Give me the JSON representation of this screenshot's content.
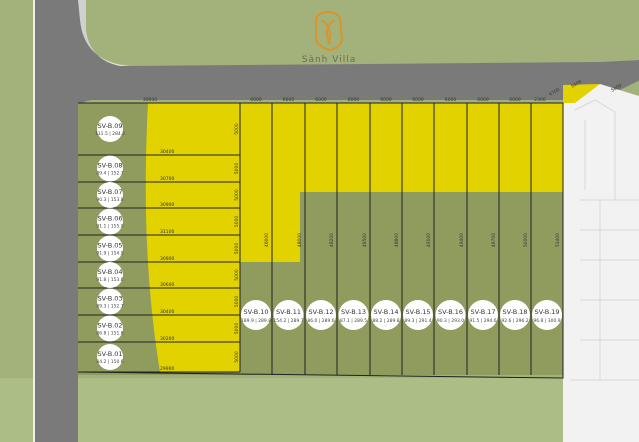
{
  "brand": {
    "name": "Sành Villa",
    "logo": "S-monogram-shield",
    "logo_color": "#d9952b"
  },
  "colors": {
    "background": "#a3b27a",
    "road": "#7a7a7a",
    "sold_lot": "#8f9c5e",
    "available_area": "#e2d300",
    "neighbor": "#f2f2f2"
  },
  "top_dimensions": {
    "main": "30000",
    "segments": [
      "6000",
      "6000",
      "6000",
      "6000",
      "6000",
      "6000",
      "6000",
      "6000",
      "6000",
      "2300"
    ],
    "corner": [
      "4700",
      "5800",
      "5800"
    ]
  },
  "left_lots": [
    {
      "id": "SV-B.09",
      "area": "131.5",
      "perimeter": "284.2",
      "width": "30400",
      "depth": "5000"
    },
    {
      "id": "SV-B.08",
      "area": "89.4",
      "perimeter": "152.7",
      "width": "30700",
      "depth": "5000"
    },
    {
      "id": "SV-B.07",
      "area": "90.3",
      "perimeter": "153.8",
      "width": "30900",
      "depth": "5000"
    },
    {
      "id": "SV-B.06",
      "area": "91.1",
      "perimeter": "155.0",
      "width": "31100",
      "depth": "5000"
    },
    {
      "id": "SV-B.05",
      "area": "91.9",
      "perimeter": "154.9",
      "width": "30900",
      "depth": "5000"
    },
    {
      "id": "SV-B.04",
      "area": "91.8",
      "perimeter": "153.6",
      "width": "30600",
      "depth": "5000"
    },
    {
      "id": "SV-B.03",
      "area": "89.3",
      "perimeter": "152.7",
      "width": "30400",
      "depth": "5000"
    },
    {
      "id": "SV-B.02",
      "area": "86.8",
      "perimeter": "151.6",
      "width": "30200",
      "depth": "5000"
    },
    {
      "id": "SV-B.01",
      "area": "84.2",
      "perimeter": "150.6",
      "width": "29900",
      "depth": "5000"
    }
  ],
  "right_lots": [
    {
      "id": "SV-B.10",
      "area": "189.9",
      "perimeter": "289.8",
      "depth": "46000"
    },
    {
      "id": "SV-B.11",
      "area": "154.2",
      "perimeter": "289.7",
      "depth": "48000"
    },
    {
      "id": "SV-B.12",
      "area": "86.0",
      "perimeter": "289.6",
      "depth": "48200"
    },
    {
      "id": "SV-B.13",
      "area": "87.1",
      "perimeter": "289.5",
      "depth": "48500"
    },
    {
      "id": "SV-B.14",
      "area": "88.2",
      "perimeter": "289.8",
      "depth": "48800"
    },
    {
      "id": "SV-B.15",
      "area": "89.3",
      "perimeter": "291.4",
      "depth": "49100"
    },
    {
      "id": "SV-B.16",
      "area": "90.3",
      "perimeter": "293.0",
      "depth": "49400"
    },
    {
      "id": "SV-B.17",
      "area": "91.5",
      "perimeter": "294.6",
      "depth": "49700"
    },
    {
      "id": "SV-B.18",
      "area": "92.6",
      "perimeter": "296.2",
      "depth": "50000"
    },
    {
      "id": "SV-B.19",
      "area": "96.8",
      "perimeter": "300.9",
      "depth": "51400"
    }
  ]
}
